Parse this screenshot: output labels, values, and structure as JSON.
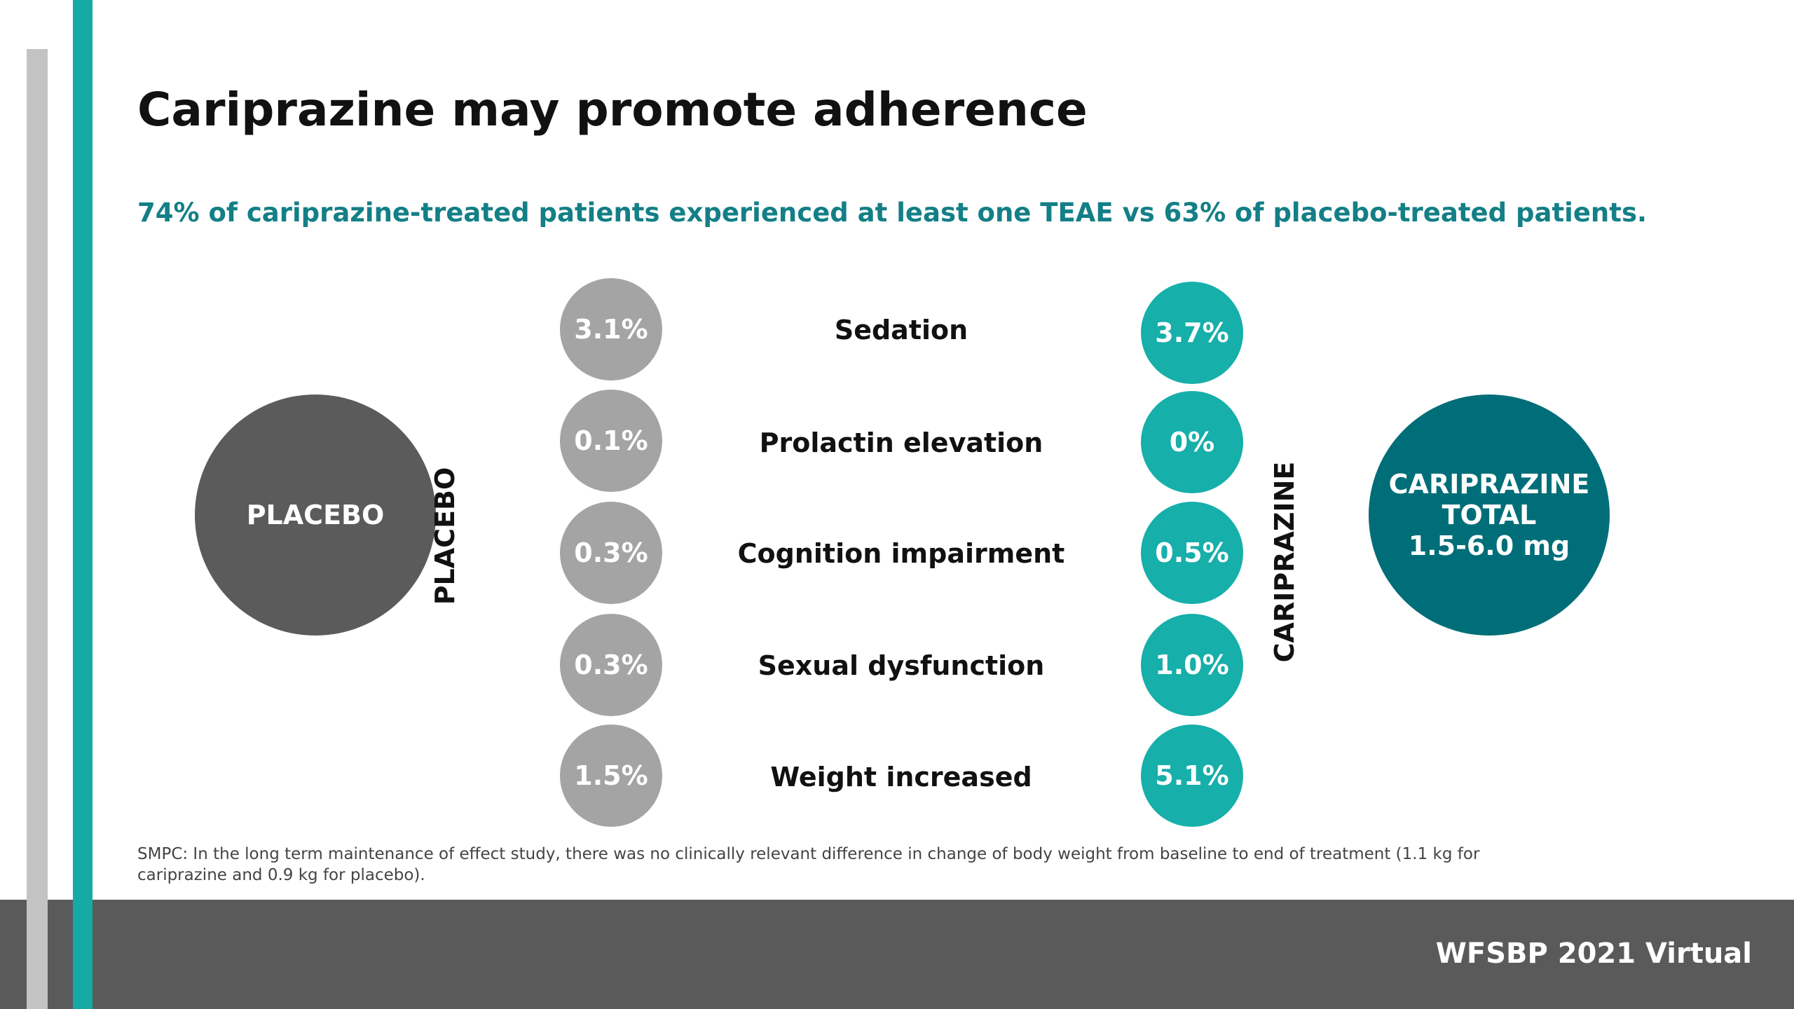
{
  "title": "Cariprazine may promote adherence",
  "subtitle": "74% of cariprazine-treated patients experienced at least one TEAE vs 63% of placebo-treated patients.",
  "placebo_circle": "PLACEBO",
  "placebo_vertical": "PLACEBO",
  "cariprazine_vertical": "CARIPRAZINE",
  "cariprazine_circle": {
    "line1": "CARIPRAZINE",
    "line2": "TOTAL",
    "line3": "1.5-6.0 mg"
  },
  "rows": [
    {
      "label": "Sedation",
      "placebo": "3.1%",
      "cariprazine": "3.7%"
    },
    {
      "label": "Prolactin elevation",
      "placebo": "0.1%",
      "cariprazine": "0%"
    },
    {
      "label": "Cognition impairment",
      "placebo": "0.3%",
      "cariprazine": "0.5%"
    },
    {
      "label": "Sexual dysfunction",
      "placebo": "0.3%",
      "cariprazine": "1.0%"
    },
    {
      "label": "Weight increased",
      "placebo": "1.5%",
      "cariprazine": "5.1%"
    }
  ],
  "footnote": "SMPC: In the long term maintenance of effect study, there was no clinically relevant difference in change of body weight from baseline to end of treatment (1.1 kg for cariprazine and 0.9 kg for placebo).",
  "footer": "WFSBP 2021 Virtual",
  "colors": {
    "teal_accent": "#16a9a6",
    "subtitle_teal": "#137f86",
    "placebo_gray": "#a4a4a4",
    "placebo_dark": "#5b5b5b",
    "cariprazine_dark_teal": "#006e78",
    "footer_gray": "#5a5a5a"
  }
}
